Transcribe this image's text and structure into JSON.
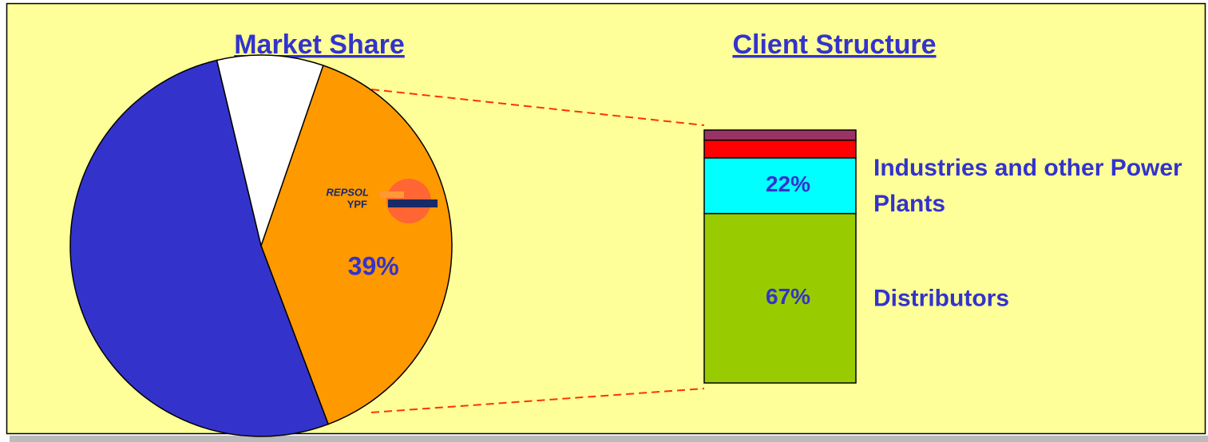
{
  "chart_data": [
    {
      "type": "pie",
      "title": "Market Share",
      "categories": [
        null,
        null,
        null
      ],
      "values": [
        39,
        52,
        9
      ],
      "value_labels": [
        "39%",
        null,
        null
      ],
      "colors": [
        "#ff9900",
        "#3333cc",
        "#ffffff"
      ],
      "logo": [
        "REPSOL",
        "YPF"
      ]
    },
    {
      "type": "stacked_bar",
      "title": "Client Structure",
      "ylim": [
        0,
        100
      ],
      "series": [
        {
          "name": "Distributors",
          "color": "#99cc00",
          "values": [
            67
          ],
          "value_labels": [
            "67%"
          ]
        },
        {
          "name": "Industries and other Power Plants",
          "color": "#00ffff",
          "values": [
            22
          ],
          "value_labels": [
            "22%"
          ]
        },
        {
          "color": "#ff0000",
          "values": [
            7
          ]
        },
        {
          "color": "#993366",
          "values": [
            4
          ]
        }
      ]
    }
  ]
}
